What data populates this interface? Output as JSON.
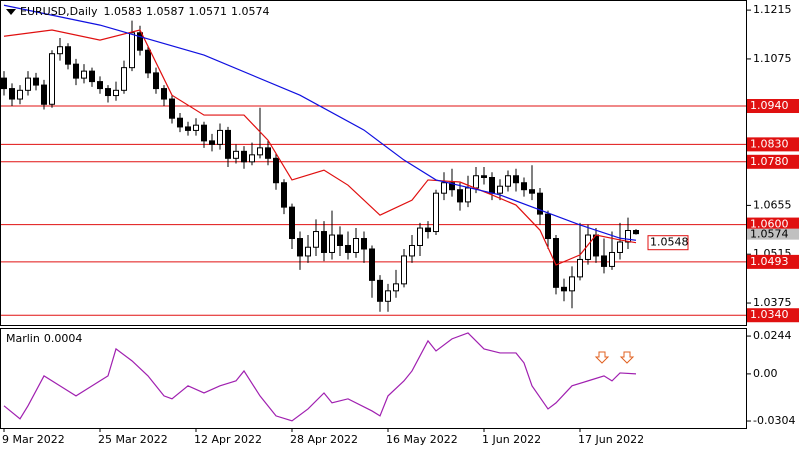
{
  "chart_data": [
    {
      "type": "candlestick",
      "title": "EURUSD,Daily",
      "categories": [
        "9 Mar 2022",
        null,
        null,
        null,
        null,
        null,
        null,
        null,
        null,
        null,
        null,
        null,
        "25 Mar 2022",
        null,
        null,
        null,
        null,
        null,
        null,
        null,
        null,
        null,
        null,
        null,
        "12 Apr 2022",
        null,
        null,
        null,
        null,
        null,
        null,
        null,
        null,
        null,
        null,
        null,
        "28 Apr 2022",
        null,
        null,
        null,
        null,
        null,
        null,
        null,
        null,
        null,
        null,
        null,
        "16 May 2022",
        null,
        null,
        null,
        null,
        null,
        null,
        null,
        null,
        null,
        null,
        null,
        "1 Jun 2022",
        null,
        null,
        null,
        null,
        null,
        null,
        null,
        null,
        null,
        null,
        null,
        "17 Jun 2022",
        null,
        null,
        null,
        null,
        null,
        null,
        null
      ],
      "ohlc": [
        [
          1.102,
          1.104,
          1.097,
          1.099
        ],
        [
          1.099,
          1.1005,
          1.094,
          1.096
        ],
        [
          1.096,
          1.1,
          1.0945,
          1.0985
        ],
        [
          1.0985,
          1.104,
          1.097,
          1.102
        ],
        [
          1.102,
          1.1035,
          1.0985,
          1.1
        ],
        [
          1.1,
          1.1015,
          1.093,
          1.0945
        ],
        [
          1.0945,
          1.11,
          1.0935,
          1.109
        ],
        [
          1.109,
          1.1135,
          1.107,
          1.111
        ],
        [
          1.111,
          1.112,
          1.1045,
          1.106
        ],
        [
          1.106,
          1.1075,
          1.1,
          1.102
        ],
        [
          1.102,
          1.106,
          1.1005,
          1.104
        ],
        [
          1.104,
          1.105,
          1.0995,
          1.101
        ],
        [
          1.101,
          1.1025,
          1.0975,
          1.099
        ],
        [
          1.099,
          1.1,
          1.095,
          1.097
        ],
        [
          1.097,
          1.101,
          1.0955,
          1.0985
        ],
        [
          1.0985,
          1.107,
          1.0975,
          1.105
        ],
        [
          1.105,
          1.1185,
          1.104,
          1.115
        ],
        [
          1.115,
          1.117,
          1.1085,
          1.11
        ],
        [
          1.11,
          1.111,
          1.102,
          1.1035
        ],
        [
          1.1035,
          1.105,
          1.0975,
          1.099
        ],
        [
          1.099,
          1.1,
          1.094,
          1.096
        ],
        [
          1.096,
          1.097,
          1.089,
          1.0905
        ],
        [
          1.0905,
          1.092,
          1.0865,
          1.088
        ],
        [
          1.088,
          1.0895,
          1.0855,
          1.087
        ],
        [
          1.087,
          1.0905,
          1.0855,
          1.0885
        ],
        [
          1.0885,
          1.0895,
          1.082,
          1.084
        ],
        [
          1.084,
          1.086,
          1.081,
          1.083
        ],
        [
          1.083,
          1.089,
          1.0815,
          1.087
        ],
        [
          1.087,
          1.088,
          1.0765,
          1.079
        ],
        [
          1.079,
          1.083,
          1.0775,
          1.081
        ],
        [
          1.081,
          1.0825,
          1.076,
          1.078
        ],
        [
          1.078,
          1.0835,
          1.077,
          1.08
        ],
        [
          1.08,
          1.0935,
          1.079,
          1.082
        ],
        [
          1.082,
          1.084,
          1.077,
          1.079
        ],
        [
          1.079,
          1.0805,
          1.07,
          1.072
        ],
        [
          1.072,
          1.073,
          1.063,
          1.065
        ],
        [
          1.065,
          1.066,
          1.053,
          1.056
        ],
        [
          1.056,
          1.058,
          1.047,
          1.051
        ],
        [
          1.051,
          1.057,
          1.049,
          1.0535
        ],
        [
          1.0535,
          1.0615,
          1.051,
          1.058
        ],
        [
          1.058,
          1.061,
          1.0495,
          1.052
        ],
        [
          1.052,
          1.064,
          1.05,
          1.057
        ],
        [
          1.057,
          1.0595,
          1.051,
          1.054
        ],
        [
          1.054,
          1.058,
          1.05,
          1.052
        ],
        [
          1.052,
          1.059,
          1.0505,
          1.056
        ],
        [
          1.056,
          1.058,
          1.049,
          1.053
        ],
        [
          1.053,
          1.054,
          1.039,
          1.044
        ],
        [
          1.044,
          1.0455,
          1.035,
          1.038
        ],
        [
          1.038,
          1.043,
          1.035,
          1.041
        ],
        [
          1.041,
          1.047,
          1.039,
          1.043
        ],
        [
          1.043,
          1.053,
          1.042,
          1.051
        ],
        [
          1.051,
          1.057,
          1.049,
          1.054
        ],
        [
          1.054,
          1.0605,
          1.051,
          1.059
        ],
        [
          1.059,
          1.061,
          1.056,
          1.058
        ],
        [
          1.058,
          1.07,
          1.057,
          1.069
        ],
        [
          1.069,
          1.075,
          1.067,
          1.072
        ],
        [
          1.072,
          1.076,
          1.068,
          1.07
        ],
        [
          1.07,
          1.072,
          1.064,
          1.0665
        ],
        [
          1.0665,
          1.074,
          1.065,
          1.0705
        ],
        [
          1.0705,
          1.0765,
          1.069,
          1.074
        ],
        [
          1.074,
          1.0765,
          1.0715,
          1.0735
        ],
        [
          1.0735,
          1.075,
          1.067,
          1.069
        ],
        [
          1.069,
          1.073,
          1.067,
          1.071
        ],
        [
          1.071,
          1.0755,
          1.0695,
          1.074
        ],
        [
          1.074,
          1.076,
          1.0695,
          1.072
        ],
        [
          1.072,
          1.0735,
          1.068,
          1.07
        ],
        [
          1.07,
          1.077,
          1.067,
          1.069
        ],
        [
          1.069,
          1.0705,
          1.06,
          1.063
        ],
        [
          1.063,
          1.064,
          1.053,
          1.056
        ],
        [
          1.056,
          1.057,
          1.04,
          1.042
        ],
        [
          1.042,
          1.0445,
          1.038,
          1.041
        ],
        [
          1.041,
          1.048,
          1.036,
          1.045
        ],
        [
          1.045,
          1.0605,
          1.044,
          1.05
        ],
        [
          1.05,
          1.06,
          1.0485,
          1.057
        ],
        [
          1.057,
          1.059,
          1.049,
          1.051
        ],
        [
          1.051,
          1.056,
          1.046,
          1.048
        ],
        [
          1.048,
          1.058,
          1.047,
          1.052
        ],
        [
          1.052,
          1.0605,
          1.05,
          1.055
        ],
        [
          1.055,
          1.062,
          1.053,
          1.0583
        ],
        [
          1.0583,
          1.0587,
          1.0571,
          1.0574
        ]
      ],
      "lines": [
        {
          "color": "#e01010",
          "x": [
            0,
            6,
            12,
            17,
            21,
            25,
            30,
            33,
            36,
            40,
            43,
            47,
            51,
            53,
            57,
            61,
            64,
            67,
            69,
            72,
            74,
            77,
            79
          ],
          "values": [
            1.114,
            1.1158,
            1.1129,
            1.1158,
            1.0971,
            1.0914,
            1.0914,
            1.0842,
            1.0728,
            1.0756,
            1.0713,
            1.0627,
            1.067,
            1.0728,
            1.0722,
            1.0685,
            1.0656,
            1.0584,
            1.0484,
            1.0513,
            1.057,
            1.0556,
            1.0548
          ]
        },
        {
          "color": "#1010e0",
          "x": [
            0,
            12,
            25,
            37,
            45,
            50,
            54,
            62,
            67,
            72,
            77,
            79
          ],
          "values": [
            1.1229,
            1.1172,
            1.1086,
            1.0971,
            1.0871,
            1.0785,
            1.0728,
            1.0685,
            1.0642,
            1.0599,
            1.0561,
            1.0555
          ]
        }
      ],
      "levels": [
        {
          "value": 1.094,
          "label": "1.0940"
        },
        {
          "value": 1.083,
          "label": "1.0830"
        },
        {
          "value": 1.078,
          "label": "1.0780"
        },
        {
          "value": 1.06,
          "label": "1.0600"
        },
        {
          "value": 1.0493,
          "label": "1.0493"
        },
        {
          "value": 1.034,
          "label": "1.0340"
        }
      ],
      "level_color": "#e01010",
      "ylim": [
        1.0312,
        1.1244
      ],
      "yticks": [
        1.1215,
        1.1075,
        1.0655,
        1.0515,
        1.0375
      ]
    },
    {
      "type": "line",
      "title": "Marlin",
      "current": 0.0004,
      "color": "#a020b0",
      "x": [
        0,
        2,
        3,
        5,
        7,
        9,
        11,
        13,
        14,
        16,
        18,
        20,
        21,
        23,
        25,
        27,
        29,
        30,
        32,
        34,
        36,
        38,
        40,
        41,
        43,
        46,
        47,
        48,
        50,
        51,
        53,
        54,
        56,
        58,
        60,
        62,
        64,
        65,
        66,
        68,
        69,
        71,
        73,
        75,
        76,
        77,
        79
      ],
      "values": [
        -0.0206,
        -0.029,
        -0.0206,
        -0.0013,
        -0.0077,
        -0.0142,
        -0.0077,
        -0.0013,
        0.0161,
        0.0084,
        -0.0013,
        -0.0142,
        -0.0161,
        -0.0077,
        -0.0123,
        -0.0077,
        -0.0045,
        0.0019,
        -0.0142,
        -0.0271,
        -0.0303,
        -0.0226,
        -0.0123,
        -0.0187,
        -0.0161,
        -0.0239,
        -0.0271,
        -0.0142,
        -0.0045,
        0.0019,
        0.0213,
        0.0148,
        0.0226,
        0.0264,
        0.0161,
        0.0135,
        0.0135,
        0.0071,
        -0.0077,
        -0.0226,
        -0.0187,
        -0.0077,
        -0.0045,
        -0.0013,
        -0.0045,
        0.0006,
        0.0
      ],
      "ylim": [
        -0.0349,
        0.0296
      ],
      "yticks": [
        0.0244,
        {
          "value": 0,
          "label": "0.00"
        },
        -0.0304
      ]
    }
  ]
}
